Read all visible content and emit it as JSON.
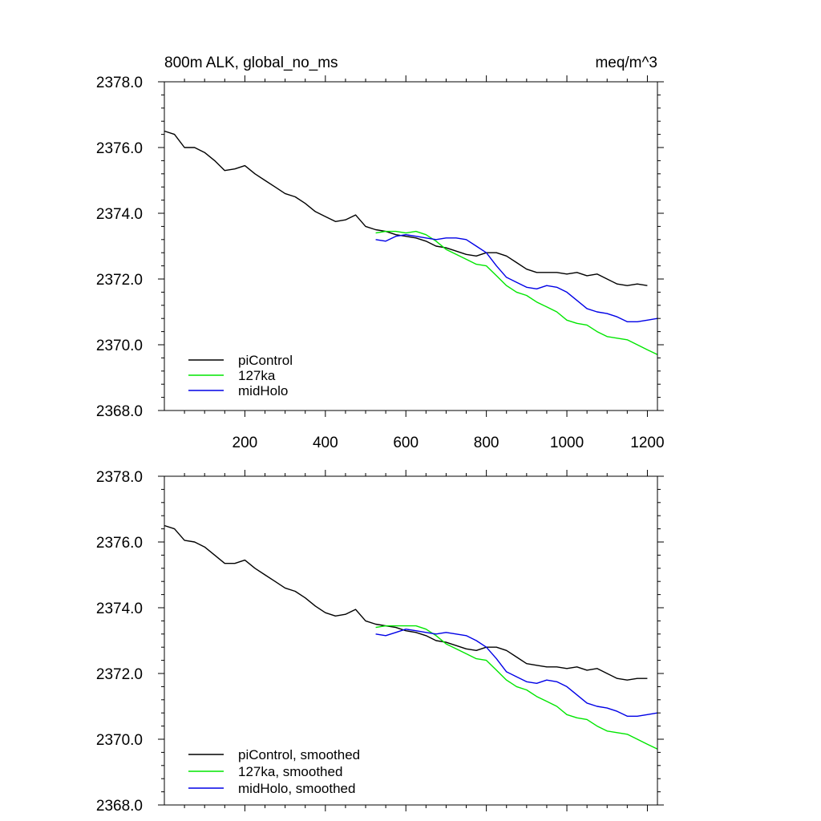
{
  "colors": {
    "piControl": "#000000",
    "127ka": "#00e600",
    "midHolo": "#0000e6",
    "axis": "#000000",
    "background": "#ffffff"
  },
  "chart_data": [
    {
      "type": "line",
      "title_left": "800m ALK, global_no_ms",
      "title_right": "meq/m^3",
      "xlabel": "",
      "ylabel": "",
      "xlim": [
        0,
        1225
      ],
      "ylim": [
        2368,
        2378
      ],
      "xticks": [
        200,
        400,
        600,
        800,
        1000,
        1200
      ],
      "xtick_labels": [
        "200",
        "400",
        "600",
        "800",
        "1000",
        "1200"
      ],
      "yticks": [
        2368,
        2370,
        2372,
        2374,
        2376,
        2378
      ],
      "ytick_labels": [
        "2368.0",
        "2370.0",
        "2372.0",
        "2374.0",
        "2376.0",
        "2378.0"
      ],
      "legend": [
        "piControl",
        "127ka",
        "midHolo"
      ],
      "legend_position": "bottom-left",
      "series": [
        {
          "name": "piControl",
          "color_key": "piControl",
          "x": [
            0,
            25,
            50,
            75,
            100,
            125,
            150,
            175,
            200,
            225,
            250,
            275,
            300,
            325,
            350,
            375,
            400,
            425,
            450,
            475,
            500,
            525,
            550,
            575,
            600,
            625,
            650,
            675,
            700,
            725,
            750,
            775,
            800,
            825,
            850,
            875,
            900,
            925,
            950,
            975,
            1000,
            1025,
            1050,
            1075,
            1100,
            1125,
            1150,
            1175,
            1200
          ],
          "y": [
            2376.5,
            2376.4,
            2376.0,
            2376.0,
            2375.85,
            2375.6,
            2375.3,
            2375.35,
            2375.45,
            2375.2,
            2375.0,
            2374.8,
            2374.6,
            2374.5,
            2374.3,
            2374.05,
            2373.9,
            2373.75,
            2373.8,
            2373.95,
            2373.6,
            2373.5,
            2373.45,
            2373.35,
            2373.3,
            2373.25,
            2373.15,
            2373.0,
            2372.95,
            2372.85,
            2372.75,
            2372.7,
            2372.8,
            2372.8,
            2372.7,
            2372.5,
            2372.3,
            2372.2,
            2372.2,
            2372.2,
            2372.15,
            2372.2,
            2372.1,
            2372.15,
            2372.0,
            2371.85,
            2371.8,
            2371.85,
            2371.8
          ]
        },
        {
          "name": "127ka",
          "color_key": "127ka",
          "x": [
            525,
            550,
            575,
            600,
            625,
            650,
            675,
            700,
            725,
            750,
            775,
            800,
            825,
            850,
            875,
            900,
            925,
            950,
            975,
            1000,
            1025,
            1050,
            1075,
            1100,
            1125,
            1150,
            1175,
            1200,
            1225
          ],
          "y": [
            2373.4,
            2373.45,
            2373.45,
            2373.4,
            2373.45,
            2373.35,
            2373.15,
            2372.9,
            2372.75,
            2372.6,
            2372.45,
            2372.4,
            2372.1,
            2371.8,
            2371.6,
            2371.5,
            2371.3,
            2371.15,
            2371.0,
            2370.75,
            2370.65,
            2370.6,
            2370.4,
            2370.25,
            2370.2,
            2370.15,
            2370.0,
            2369.85,
            2369.7
          ]
        },
        {
          "name": "midHolo",
          "color_key": "midHolo",
          "x": [
            525,
            550,
            575,
            600,
            625,
            650,
            675,
            700,
            725,
            750,
            775,
            800,
            825,
            850,
            875,
            900,
            925,
            950,
            975,
            1000,
            1025,
            1050,
            1075,
            1100,
            1125,
            1150,
            1175,
            1200,
            1225
          ],
          "y": [
            2373.2,
            2373.15,
            2373.3,
            2373.35,
            2373.3,
            2373.25,
            2373.2,
            2373.25,
            2373.25,
            2373.2,
            2373.0,
            2372.8,
            2372.4,
            2372.05,
            2371.9,
            2371.75,
            2371.7,
            2371.8,
            2371.75,
            2371.6,
            2371.35,
            2371.1,
            2371.0,
            2370.95,
            2370.85,
            2370.7,
            2370.7,
            2370.75,
            2370.8
          ]
        }
      ]
    },
    {
      "type": "line",
      "title_left": "",
      "title_right": "",
      "xlabel": "",
      "ylabel": "",
      "xlim": [
        0,
        1225
      ],
      "ylim": [
        2368,
        2378
      ],
      "xticks": [
        200,
        400,
        600,
        800,
        1000,
        1200
      ],
      "xtick_labels": [],
      "yticks": [
        2368,
        2370,
        2372,
        2374,
        2376,
        2378
      ],
      "ytick_labels": [
        "2368.0",
        "2370.0",
        "2372.0",
        "2374.0",
        "2376.0",
        "2378.0"
      ],
      "legend": [
        "piControl, smoothed",
        "127ka, smoothed",
        "midHolo, smoothed"
      ],
      "legend_position": "bottom-left",
      "series": [
        {
          "name": "piControl, smoothed",
          "color_key": "piControl",
          "x": [
            0,
            25,
            50,
            75,
            100,
            125,
            150,
            175,
            200,
            225,
            250,
            275,
            300,
            325,
            350,
            375,
            400,
            425,
            450,
            475,
            500,
            525,
            550,
            575,
            600,
            625,
            650,
            675,
            700,
            725,
            750,
            775,
            800,
            825,
            850,
            875,
            900,
            925,
            950,
            975,
            1000,
            1025,
            1050,
            1075,
            1100,
            1125,
            1150,
            1175,
            1200
          ],
          "y": [
            2376.5,
            2376.4,
            2376.05,
            2376.0,
            2375.85,
            2375.6,
            2375.35,
            2375.35,
            2375.45,
            2375.2,
            2375.0,
            2374.8,
            2374.6,
            2374.5,
            2374.3,
            2374.05,
            2373.85,
            2373.75,
            2373.8,
            2373.95,
            2373.6,
            2373.5,
            2373.45,
            2373.4,
            2373.3,
            2373.25,
            2373.15,
            2373.0,
            2372.95,
            2372.85,
            2372.75,
            2372.7,
            2372.8,
            2372.8,
            2372.7,
            2372.5,
            2372.3,
            2372.25,
            2372.2,
            2372.2,
            2372.15,
            2372.2,
            2372.1,
            2372.15,
            2372.0,
            2371.85,
            2371.8,
            2371.85,
            2371.85
          ]
        },
        {
          "name": "127ka, smoothed",
          "color_key": "127ka",
          "x": [
            525,
            550,
            575,
            600,
            625,
            650,
            675,
            700,
            725,
            750,
            775,
            800,
            825,
            850,
            875,
            900,
            925,
            950,
            975,
            1000,
            1025,
            1050,
            1075,
            1100,
            1125,
            1150,
            1175,
            1200,
            1225
          ],
          "y": [
            2373.4,
            2373.45,
            2373.45,
            2373.45,
            2373.45,
            2373.35,
            2373.15,
            2372.9,
            2372.75,
            2372.6,
            2372.45,
            2372.4,
            2372.1,
            2371.8,
            2371.6,
            2371.5,
            2371.3,
            2371.15,
            2371.0,
            2370.75,
            2370.65,
            2370.6,
            2370.4,
            2370.25,
            2370.2,
            2370.15,
            2370.0,
            2369.85,
            2369.7
          ]
        },
        {
          "name": "midHolo, smoothed",
          "color_key": "midHolo",
          "x": [
            525,
            550,
            575,
            600,
            625,
            650,
            675,
            700,
            725,
            750,
            775,
            800,
            825,
            850,
            875,
            900,
            925,
            950,
            975,
            1000,
            1025,
            1050,
            1075,
            1100,
            1125,
            1150,
            1175,
            1200,
            1225
          ],
          "y": [
            2373.2,
            2373.15,
            2373.25,
            2373.35,
            2373.3,
            2373.25,
            2373.2,
            2373.25,
            2373.2,
            2373.15,
            2373.0,
            2372.8,
            2372.45,
            2372.05,
            2371.9,
            2371.75,
            2371.7,
            2371.8,
            2371.75,
            2371.6,
            2371.35,
            2371.1,
            2371.0,
            2370.95,
            2370.85,
            2370.7,
            2370.7,
            2370.75,
            2370.8
          ]
        }
      ]
    }
  ]
}
